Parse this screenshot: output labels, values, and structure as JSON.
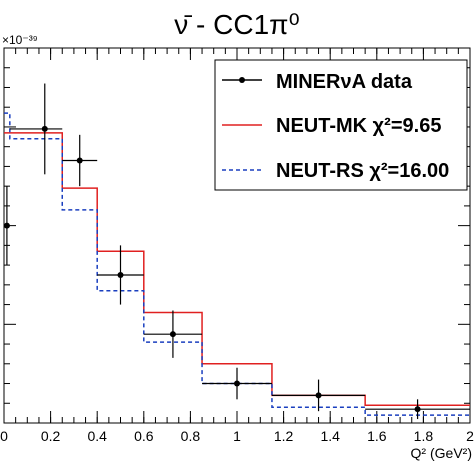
{
  "chart_data": {
    "type": "line",
    "title": "ν̄ - CC1π⁰",
    "y_exponent_label": "×10⁻³⁹",
    "xlabel": "Q² (GeV²)",
    "ylabel": "",
    "xlim": [
      0,
      2
    ],
    "ylim": [
      0,
      1.9
    ],
    "x_ticks": [
      0,
      0.2,
      0.4,
      0.6,
      0.8,
      1,
      1.2,
      1.4,
      1.6,
      1.8,
      2
    ],
    "x_tick_labels": [
      "0",
      "0.2",
      "0.4",
      "0.6",
      "0.8",
      "1",
      "1.2",
      "1.4",
      "1.6",
      "1.8",
      "2"
    ],
    "y_major_ticks": [
      0.5,
      1.0,
      1.5
    ],
    "grid": false,
    "legend_position": "top-right",
    "bin_edges": [
      0,
      0.025,
      0.25,
      0.4,
      0.6,
      0.85,
      1.15,
      1.55,
      2.0
    ],
    "series": [
      {
        "name": "MINERνA data",
        "kind": "points",
        "color": "#000000",
        "x": [
          0.0125,
          0.175,
          0.325,
          0.5,
          0.725,
          1.0,
          1.35,
          1.775
        ],
        "y": [
          1.0,
          1.49,
          1.33,
          0.75,
          0.45,
          0.2,
          0.14,
          0.07
        ],
        "yerr": [
          0.2,
          0.23,
          0.13,
          0.15,
          0.12,
          0.08,
          0.08,
          0.05
        ]
      },
      {
        "name": "NEUT-MK",
        "legend_label": "NEUT-MK χ²=9.65",
        "kind": "step",
        "color": "#e02020",
        "y": [
          1.47,
          1.47,
          1.19,
          0.87,
          0.56,
          0.3,
          0.14,
          0.09
        ]
      },
      {
        "name": "NEUT-RS",
        "legend_label": "NEUT-RS χ²=16.00",
        "kind": "step",
        "style": "dashed",
        "color": "#1a3fbf",
        "y": [
          1.57,
          1.44,
          1.08,
          0.67,
          0.41,
          0.2,
          0.08,
          0.04
        ]
      }
    ]
  }
}
